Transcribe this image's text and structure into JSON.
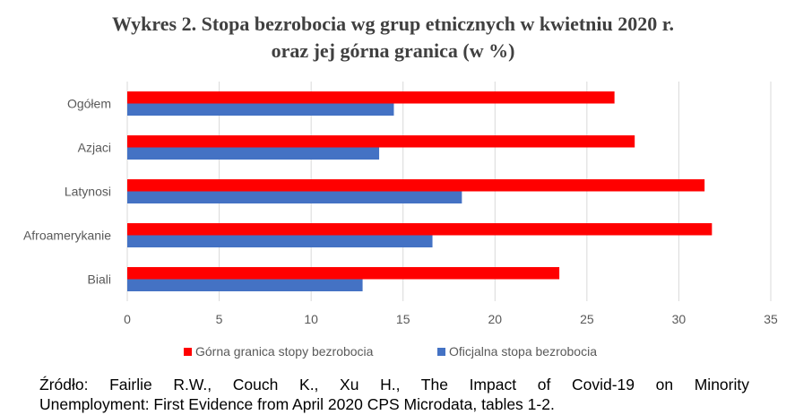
{
  "title_line1": "Wykres 2. Stopa bezrobocia wg grup etnicznych w kwietniu 2020 r.",
  "title_line2": "oraz jej górna granica (w %)",
  "source_line1": "Źródło: Fairlie R.W., Couch K., Xu H., The Impact of Covid-19 on Minority",
  "source_line2": "Unemployment: First Evidence from April 2020 CPS Microdata, tables 1-2.",
  "colors": {
    "series_upper": "#ff0000",
    "series_official": "#4472c4",
    "grid": "#d9d9d9",
    "axis_text": "#595959"
  },
  "chart_data": {
    "type": "bar",
    "orientation": "horizontal",
    "title": "Wykres 2. Stopa bezrobocia wg grup etnicznych w kwietniu 2020 r. oraz jej górna granica (w %)",
    "categories": [
      "Ogółem",
      "Azjaci",
      "Latynosi",
      "Afroamerykanie",
      "Biali"
    ],
    "series": [
      {
        "name": "Górna granica stopy bezrobocia",
        "values": [
          26.5,
          27.6,
          31.4,
          31.8,
          23.5
        ]
      },
      {
        "name": "Oficjalna stopa bezrobocia",
        "values": [
          14.5,
          13.7,
          18.2,
          16.6,
          12.8
        ]
      }
    ],
    "xlim": [
      0,
      35
    ],
    "xticks": [
      0,
      5,
      10,
      15,
      20,
      25,
      30,
      35
    ],
    "grid": true,
    "legend_position": "bottom"
  }
}
